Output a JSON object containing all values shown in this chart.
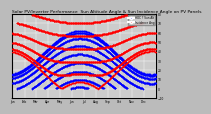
{
  "title": "Solar PV/Inverter Performance  Sun Altitude Angle & Sun Incidence Angle on PV Panels",
  "title_fontsize": 3.2,
  "legend_labels": [
    "HOC ? Sun Alt",
    "Incidence Ang"
  ],
  "legend_colors": [
    "blue",
    "red"
  ],
  "background_color": "#bbbbbb",
  "plot_bg_color": "#cccccc",
  "grid_color": "#ffffff",
  "ylim": [
    -10,
    80
  ],
  "xlim": [
    0,
    365
  ],
  "ytick_labels": [
    "70",
    "60",
    "50",
    "40",
    "30",
    "20",
    "10",
    "0",
    "-10"
  ],
  "tick_fontsize": 2.2,
  "dot_size": 1.2,
  "n_days": 365,
  "lat_deg": 51.5,
  "panel_tilt": 35,
  "panel_azimuth": 180
}
